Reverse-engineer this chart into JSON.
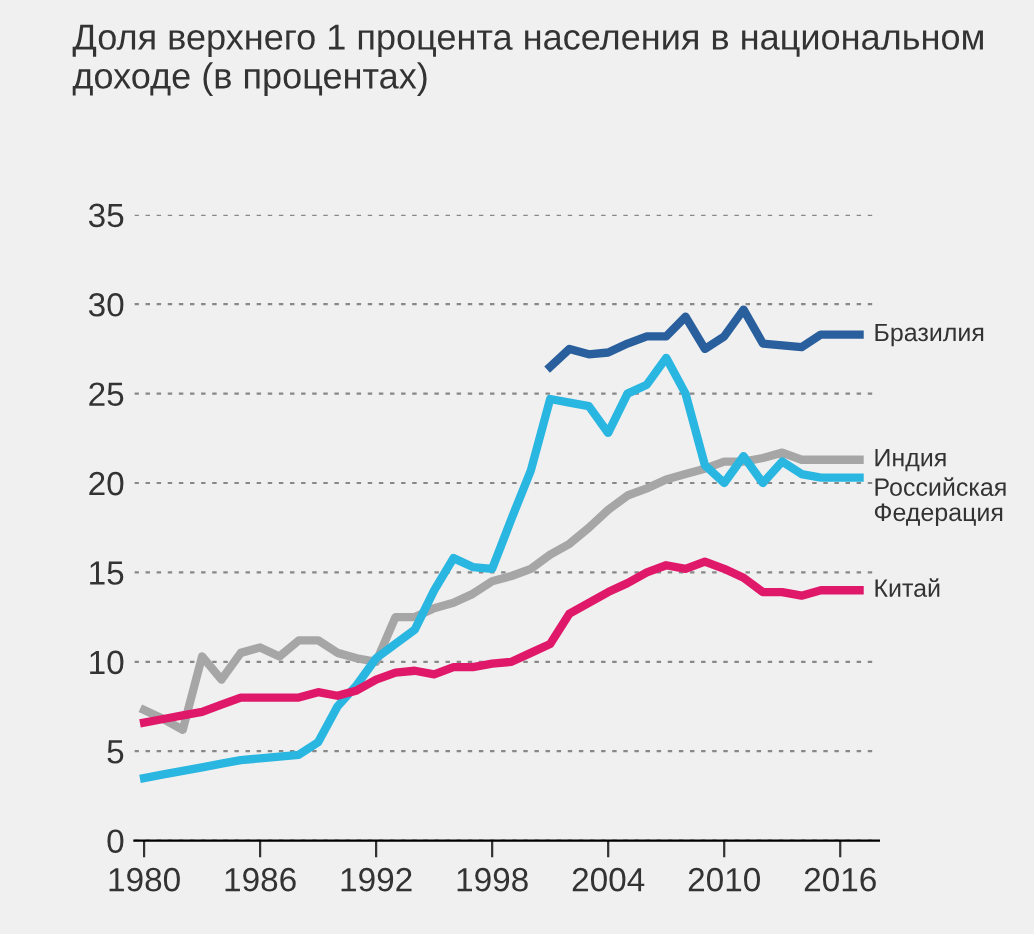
{
  "chart_data": {
    "type": "line",
    "title": "Доля верхнего 1 процента населения в национальном доходе (в процентах)",
    "x": [
      1980,
      1981,
      1982,
      1983,
      1984,
      1985,
      1986,
      1987,
      1988,
      1989,
      1990,
      1991,
      1992,
      1993,
      1994,
      1995,
      1996,
      1997,
      1998,
      1999,
      2000,
      2001,
      2002,
      2003,
      2004,
      2005,
      2006,
      2007,
      2008,
      2009,
      2010,
      2011,
      2012,
      2013,
      2014,
      2015,
      2016,
      2017
    ],
    "series": [
      {
        "name": "Бразилия",
        "color": "#2a5f9e",
        "values": [
          null,
          null,
          null,
          null,
          null,
          null,
          null,
          null,
          null,
          null,
          null,
          null,
          null,
          null,
          null,
          null,
          null,
          null,
          null,
          null,
          null,
          26.5,
          27.5,
          27.2,
          27.3,
          27.8,
          28.2,
          28.2,
          29.3,
          27.5,
          28.2,
          29.7,
          27.8,
          27.7,
          27.6,
          28.3,
          28.3,
          28.3
        ]
      },
      {
        "name": "Индия",
        "color": "#a6a6a6",
        "values": [
          7.3,
          6.8,
          6.2,
          10.3,
          9.0,
          10.5,
          10.8,
          10.3,
          11.2,
          11.2,
          10.5,
          10.2,
          10.0,
          12.5,
          12.5,
          13.0,
          13.3,
          13.8,
          14.5,
          14.8,
          15.2,
          16.0,
          16.6,
          17.5,
          18.5,
          19.3,
          19.7,
          20.2,
          20.5,
          20.8,
          21.2,
          21.2,
          21.4,
          21.7,
          21.3,
          21.3,
          21.3,
          21.3
        ]
      },
      {
        "name": "Российская\nФедерация",
        "color": "#29b6e0",
        "values": [
          3.5,
          3.7,
          3.9,
          4.1,
          4.3,
          4.5,
          4.6,
          4.7,
          4.8,
          5.5,
          7.5,
          8.7,
          10.2,
          11.0,
          11.8,
          14.0,
          15.8,
          15.3,
          15.2,
          18.0,
          20.7,
          24.7,
          24.5,
          24.3,
          22.8,
          25.0,
          25.5,
          27.0,
          25.0,
          21.0,
          20.0,
          21.5,
          20.0,
          21.2,
          20.5,
          20.3,
          20.3,
          20.3
        ]
      },
      {
        "name": "Китай",
        "color": "#e0186a",
        "values": [
          6.6,
          6.8,
          7.0,
          7.2,
          7.6,
          8.0,
          8.0,
          8.0,
          8.0,
          8.3,
          8.1,
          8.4,
          9.0,
          9.4,
          9.5,
          9.3,
          9.7,
          9.7,
          9.9,
          10.0,
          10.5,
          11.0,
          12.7,
          13.3,
          13.9,
          14.4,
          15.0,
          15.4,
          15.2,
          15.6,
          15.2,
          14.7,
          13.9,
          13.9,
          13.7,
          14.0,
          14.0,
          14.0
        ]
      }
    ],
    "xlim": [
      1979.5,
      2018
    ],
    "xticks": [
      1980,
      1986,
      1992,
      1998,
      2004,
      2010,
      2016
    ],
    "ylim": [
      0,
      35
    ],
    "yticks": [
      0,
      5,
      10,
      15,
      20,
      25,
      30,
      35
    ],
    "grid": "y",
    "line_style": "solid",
    "marker": "none"
  }
}
